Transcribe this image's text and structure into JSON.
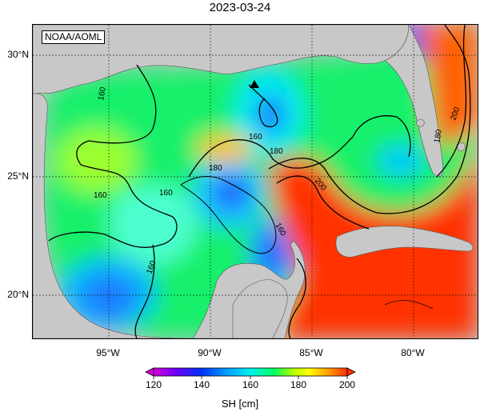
{
  "title": "2023-03-24",
  "credit": "NOAA/AOML",
  "map": {
    "lon_range": [
      -98,
      -76
    ],
    "lat_range": [
      18,
      31
    ],
    "lat_ticks": [
      {
        "value": 30,
        "label": "30°N"
      },
      {
        "value": 25,
        "label": "25°N"
      },
      {
        "value": 20,
        "label": "20°N"
      }
    ],
    "lon_ticks": [
      {
        "value": -95,
        "label": "95°W"
      },
      {
        "value": -90,
        "label": "90°W"
      },
      {
        "value": -85,
        "label": "85°W"
      },
      {
        "value": -80,
        "label": "80°W"
      }
    ],
    "contour_labels": [
      "160",
      "160",
      "160",
      "160",
      "180",
      "180",
      "200",
      "160",
      "200",
      "180",
      "160"
    ],
    "marker": "black-triangle",
    "land_color": "#c8c8c8"
  },
  "colorbar": {
    "ticks": [
      "120",
      "140",
      "160",
      "180",
      "200"
    ],
    "label": "SH [cm]",
    "colors": [
      "#d400d4",
      "#6a00ff",
      "#0033ff",
      "#00a0ff",
      "#00f0f0",
      "#00ff60",
      "#b0ff00",
      "#ffff00",
      "#ffa000",
      "#ff3000"
    ]
  }
}
